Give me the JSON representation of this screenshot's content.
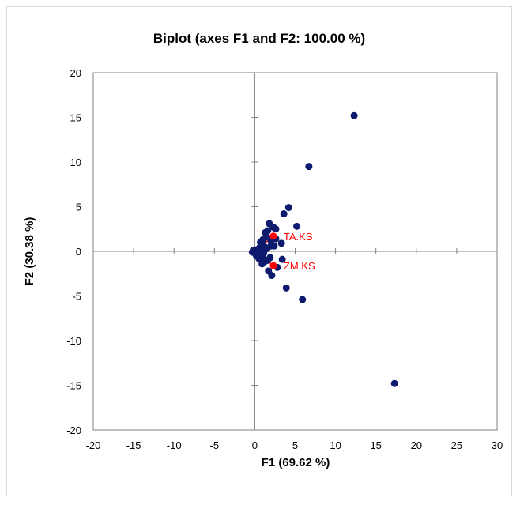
{
  "chart_data": {
    "type": "scatter",
    "title": "Biplot (axes F1 and F2: 100.00 %)",
    "xlabel": "F1 (69.62 %)",
    "ylabel": "F2 (30.38 %)",
    "xlim": [
      -20,
      30
    ],
    "ylim": [
      -20,
      20
    ],
    "xticks": [
      -20,
      -15,
      -10,
      -5,
      0,
      5,
      10,
      15,
      20,
      25,
      30
    ],
    "yticks": [
      -20,
      -15,
      -10,
      -5,
      0,
      5,
      10,
      15,
      20
    ],
    "grid": false,
    "colors": {
      "observations": "#0d1a6e",
      "variables": "#ff0000",
      "axis": "#808080"
    },
    "series": [
      {
        "points": [
          [
            12.3,
            15.2
          ],
          [
            6.7,
            9.5
          ],
          [
            4.2,
            4.9
          ],
          [
            3.6,
            4.2
          ],
          [
            5.2,
            2.8
          ],
          [
            17.3,
            -14.8
          ],
          [
            5.9,
            -5.4
          ],
          [
            3.9,
            -4.1
          ],
          [
            3.4,
            -0.9
          ],
          [
            3.3,
            0.9
          ],
          [
            2.8,
            -1.8
          ],
          [
            2.1,
            -2.7
          ],
          [
            1.7,
            -2.2
          ],
          [
            1.8,
            3.1
          ],
          [
            2.3,
            2.7
          ],
          [
            2.6,
            2.5
          ],
          [
            1.3,
            2.1
          ],
          [
            1.6,
            2.3
          ],
          [
            2.4,
            0.6
          ],
          [
            2.0,
            0.6
          ],
          [
            2.6,
            1.4
          ],
          [
            2.0,
            1.2
          ],
          [
            1.5,
            1.6
          ],
          [
            1.0,
            1.3
          ],
          [
            0.7,
            1.0
          ],
          [
            1.2,
            0.5
          ],
          [
            0.6,
            0.4
          ],
          [
            0.3,
            0.2
          ],
          [
            0.2,
            -0.1
          ],
          [
            0.1,
            0.0
          ],
          [
            0.0,
            0.0
          ],
          [
            -0.2,
            0.1
          ],
          [
            -0.3,
            -0.1
          ],
          [
            0.4,
            -0.3
          ],
          [
            0.7,
            -0.5
          ],
          [
            1.0,
            -0.8
          ],
          [
            1.3,
            -1.1
          ],
          [
            1.6,
            -1.0
          ],
          [
            1.9,
            -0.7
          ],
          [
            0.9,
            -1.4
          ],
          [
            0.5,
            -0.8
          ],
          [
            0.2,
            -0.5
          ],
          [
            0.8,
            0.6
          ],
          [
            1.5,
            0.3
          ],
          [
            1.1,
            -0.2
          ]
        ]
      },
      {
        "points": [
          [
            2.3,
            1.7
          ],
          [
            2.3,
            -1.6
          ]
        ],
        "labels": [
          "TA.KS",
          "ZM.KS"
        ]
      }
    ]
  }
}
